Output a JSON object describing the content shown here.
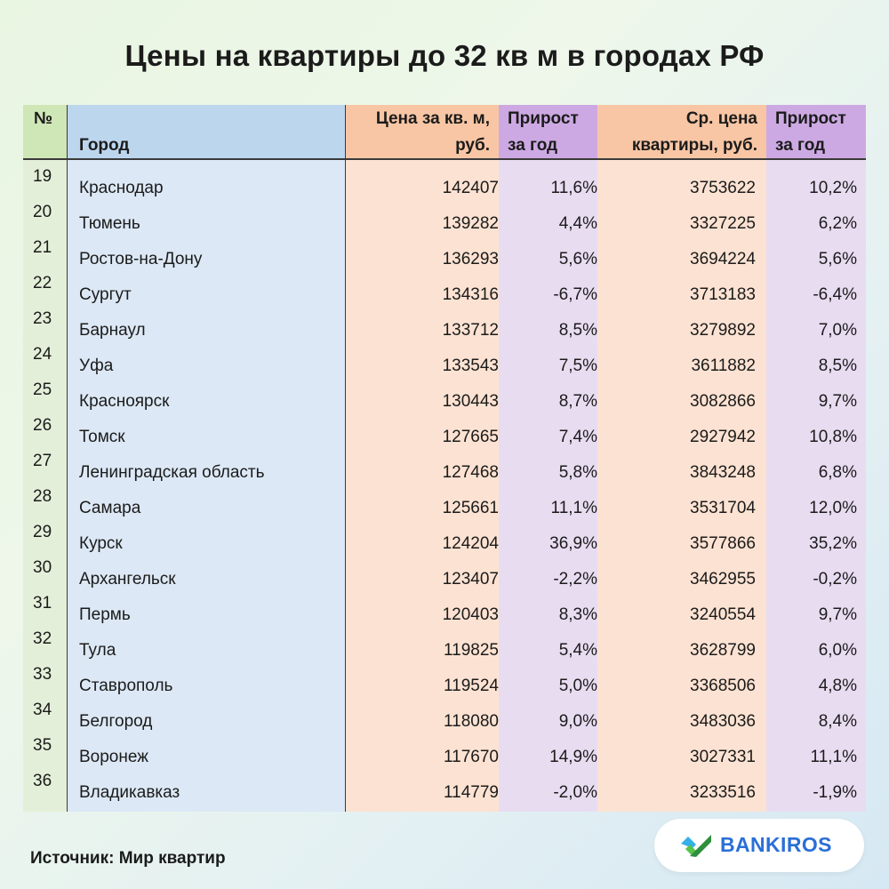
{
  "title": "Цены на квартиры до 32 кв м в городах РФ",
  "source": "Источник: Мир квартир",
  "brand": "BANKIROS",
  "chart_data": {
    "type": "table",
    "columns": [
      [
        "№"
      ],
      [
        "",
        "Город"
      ],
      [
        "Цена за кв. м,",
        "руб."
      ],
      [
        "Прирост",
        "за год"
      ],
      [
        "Ср. цена",
        "квартиры, руб."
      ],
      [
        "Прирост",
        "за год"
      ]
    ],
    "rows": [
      [
        "19",
        "Краснодар",
        "142407",
        "11,6%",
        "3753622",
        "10,2%"
      ],
      [
        "20",
        "Тюмень",
        "139282",
        "4,4%",
        "3327225",
        "6,2%"
      ],
      [
        "21",
        "Ростов-на-Дону",
        "136293",
        "5,6%",
        "3694224",
        "5,6%"
      ],
      [
        "22",
        "Сургут",
        "134316",
        "-6,7%",
        "3713183",
        "-6,4%"
      ],
      [
        "23",
        "Барнаул",
        "133712",
        "8,5%",
        "3279892",
        "7,0%"
      ],
      [
        "24",
        "Уфа",
        "133543",
        "7,5%",
        "3611882",
        "8,5%"
      ],
      [
        "25",
        "Красноярск",
        "130443",
        "8,7%",
        "3082866",
        "9,7%"
      ],
      [
        "26",
        "Томск",
        "127665",
        "7,4%",
        "2927942",
        "10,8%"
      ],
      [
        "27",
        "Ленинградская область",
        "127468",
        "5,8%",
        "3843248",
        "6,8%"
      ],
      [
        "28",
        "Самара",
        "125661",
        "11,1%",
        "3531704",
        "12,0%"
      ],
      [
        "29",
        "Курск",
        "124204",
        "36,9%",
        "3577866",
        "35,2%"
      ],
      [
        "30",
        "Архангельск",
        "123407",
        "-2,2%",
        "3462955",
        "-0,2%"
      ],
      [
        "31",
        "Пермь",
        "120403",
        "8,3%",
        "3240554",
        "9,7%"
      ],
      [
        "32",
        "Тула",
        "119825",
        "5,4%",
        "3628799",
        "6,0%"
      ],
      [
        "33",
        "Ставрополь",
        "119524",
        "5,0%",
        "3368506",
        "4,8%"
      ],
      [
        "34",
        "Белгород",
        "118080",
        "9,0%",
        "3483036",
        "8,4%"
      ],
      [
        "35",
        "Воронеж",
        "117670",
        "14,9%",
        "3027331",
        "11,1%"
      ],
      [
        "36",
        "Владикавказ",
        "114779",
        "-2,0%",
        "3233516",
        "-1,9%"
      ]
    ]
  }
}
